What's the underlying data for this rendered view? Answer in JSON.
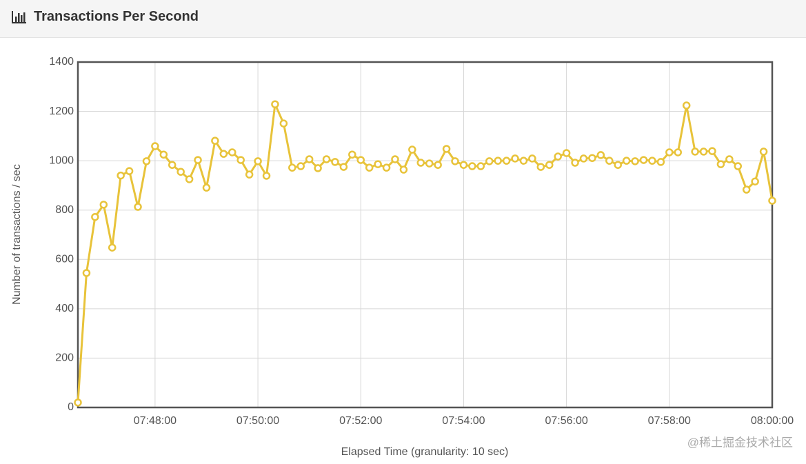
{
  "chart_data": {
    "type": "line",
    "title": "Transactions Per Second",
    "y_label": "Number of transactions / sec",
    "x_label": "Elapsed Time (granularity: 10 sec)",
    "watermark": "@稀土掘金技术社区",
    "color": "#e8c33a",
    "grid": true,
    "x": [
      "07:46:30",
      "07:46:40",
      "07:46:50",
      "07:47:00",
      "07:47:10",
      "07:47:20",
      "07:47:30",
      "07:47:40",
      "07:47:50",
      "07:48:00",
      "07:48:10",
      "07:48:20",
      "07:48:30",
      "07:48:40",
      "07:48:50",
      "07:49:00",
      "07:49:10",
      "07:49:20",
      "07:49:30",
      "07:49:40",
      "07:49:50",
      "07:50:00",
      "07:50:10",
      "07:50:20",
      "07:50:30",
      "07:50:40",
      "07:50:50",
      "07:51:00",
      "07:51:10",
      "07:51:20",
      "07:51:30",
      "07:51:40",
      "07:51:50",
      "07:52:00",
      "07:52:10",
      "07:52:20",
      "07:52:30",
      "07:52:40",
      "07:52:50",
      "07:53:00",
      "07:53:10",
      "07:53:20",
      "07:53:30",
      "07:53:40",
      "07:53:50",
      "07:54:00",
      "07:54:10",
      "07:54:20",
      "07:54:30",
      "07:54:40",
      "07:54:50",
      "07:55:00",
      "07:55:10",
      "07:55:20",
      "07:55:30",
      "07:55:40",
      "07:55:50",
      "07:56:00",
      "07:56:10",
      "07:56:20",
      "07:56:30",
      "07:56:40",
      "07:56:50",
      "07:57:00",
      "07:57:10",
      "07:57:20",
      "07:57:30",
      "07:57:40",
      "07:57:50",
      "07:58:00",
      "07:58:10",
      "07:58:20",
      "07:58:30",
      "07:58:40",
      "07:58:50",
      "07:59:00",
      "07:59:10",
      "07:59:20",
      "07:59:30",
      "07:59:40",
      "07:59:50",
      "08:00:00"
    ],
    "values": [
      20,
      545,
      772,
      822,
      648,
      940,
      958,
      813,
      998,
      1059,
      1025,
      983,
      955,
      925,
      1003,
      891,
      1081,
      1028,
      1034,
      1003,
      944,
      998,
      939,
      1229,
      1151,
      972,
      978,
      1006,
      970,
      1006,
      995,
      975,
      1025,
      1003,
      972,
      986,
      972,
      1006,
      964,
      1045,
      992,
      989,
      983,
      1048,
      998,
      983,
      978,
      978,
      998,
      1000,
      1000,
      1009,
      1000,
      1009,
      975,
      983,
      1017,
      1031,
      992,
      1009,
      1011,
      1023,
      1000,
      983,
      1000,
      998,
      1003,
      1000,
      995,
      1034,
      1034,
      1224,
      1037,
      1037,
      1039,
      986,
      1006,
      978,
      883,
      916,
      1037,
      838
    ],
    "xlim": [
      "07:46:30",
      "08:00:00"
    ],
    "xticks": [
      "07:48:00",
      "07:50:00",
      "07:52:00",
      "07:54:00",
      "07:56:00",
      "07:58:00",
      "08:00:00"
    ],
    "ylim": [
      0,
      1400
    ],
    "yticks": [
      0,
      200,
      400,
      600,
      800,
      1000,
      1200,
      1400
    ]
  }
}
